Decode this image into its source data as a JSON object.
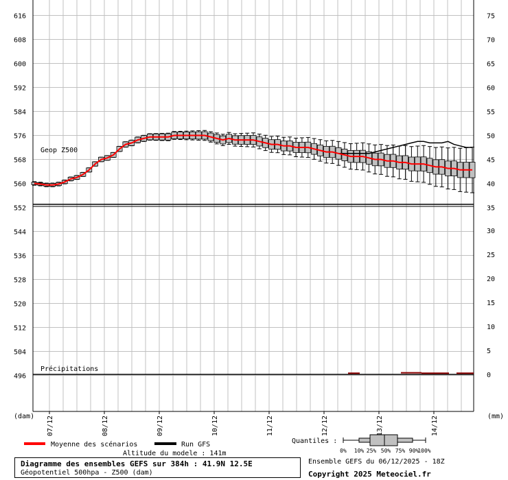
{
  "chart_data": {
    "type": "boxplot-ensemble",
    "left_unit": "(dam)",
    "right_unit": "(mm)",
    "left_ticks": [
      496,
      504,
      512,
      520,
      528,
      536,
      544,
      552,
      560,
      568,
      576,
      584,
      592,
      600,
      608,
      616
    ],
    "right_ticks_top": [
      35,
      40,
      45,
      50,
      55,
      60,
      65,
      70,
      75
    ],
    "right_ticks_bottom": [
      0,
      5,
      10,
      15,
      20,
      25,
      30,
      35
    ],
    "date_labels": [
      "07/12",
      "08/12",
      "09/12",
      "10/12",
      "11/12",
      "12/12",
      "13/12",
      "14/12"
    ],
    "upper_panel_label": "Geop Z500",
    "lower_panel_label": "Précipitations",
    "z500_mean": [
      560.0,
      559.8,
      559.5,
      559.5,
      559.8,
      560.5,
      561.5,
      562.0,
      563.0,
      564.5,
      566.5,
      568.0,
      568.5,
      569.5,
      571.5,
      573.0,
      573.5,
      574.5,
      575.0,
      575.5,
      575.5,
      575.5,
      575.5,
      576.0,
      576.0,
      576.0,
      576.0,
      576.0,
      576.0,
      575.5,
      575.0,
      574.5,
      575.0,
      574.5,
      574.5,
      574.5,
      574.5,
      574.0,
      573.5,
      573.0,
      573.0,
      572.5,
      572.5,
      572.0,
      572.0,
      572.0,
      571.5,
      571.0,
      570.5,
      570.5,
      570.0,
      569.5,
      569.0,
      569.0,
      569.0,
      568.5,
      568.0,
      568.0,
      567.5,
      567.5,
      567.0,
      567.0,
      566.5,
      566.5,
      566.5,
      566.0,
      565.5,
      565.5,
      565.0,
      565.0,
      564.5,
      564.5,
      564.5
    ],
    "z500_gfs_run": [
      560.0,
      560.0,
      559.5,
      559.5,
      559.8,
      560.5,
      561.5,
      562.0,
      563.0,
      564.5,
      566.5,
      568.0,
      568.5,
      569.5,
      571.5,
      573.0,
      573.5,
      574.5,
      575.0,
      575.5,
      575.5,
      575.5,
      575.5,
      576.0,
      576.0,
      576.0,
      576.0,
      576.0,
      576.0,
      575.5,
      575.0,
      574.5,
      575.0,
      574.5,
      574.5,
      574.5,
      574.5,
      574.0,
      573.5,
      573.0,
      573.0,
      572.5,
      572.5,
      572.0,
      572.0,
      572.0,
      571.5,
      571.0,
      570.5,
      570.5,
      570.0,
      570.0,
      570.0,
      570.0,
      570.0,
      570.0,
      570.5,
      571.0,
      571.5,
      572.0,
      572.5,
      573.0,
      573.5,
      574.0,
      574.0,
      573.5,
      573.5,
      573.5,
      574.0,
      573.0,
      572.5,
      572.0,
      572.0
    ],
    "precip_mean_segments": [
      [
        507,
        524,
        0.1
      ],
      [
        584,
        614,
        0.2
      ],
      [
        614,
        654,
        0.1
      ],
      [
        665,
        690,
        0.1
      ]
    ],
    "legend": {
      "mean_label": "Moyenne des scénarios",
      "gfs_label": "Run GFS",
      "quantiles_label": "Quantiles :",
      "quantile_ticks": [
        "0%",
        "10%",
        "25%",
        "50%",
        "75%",
        "90%",
        "100%"
      ]
    },
    "colors": {
      "mean": "#ff0000",
      "gfs": "#000000",
      "box": "#c0c0c0",
      "grid": "#c0c0c0",
      "precip": "#8b0000"
    }
  },
  "altitude": "Altitude du modele : 141m",
  "title_line1": "Diagramme des ensembles GEFS sur 384h : 41.9N 12.5E",
  "title_line2": "Géopotentiel 500hpa - Z500 (dam)",
  "run_info": "Ensemble GEFS du 06/12/2025 - 18Z",
  "copyright": "Copyright 2025 Meteociel.fr"
}
